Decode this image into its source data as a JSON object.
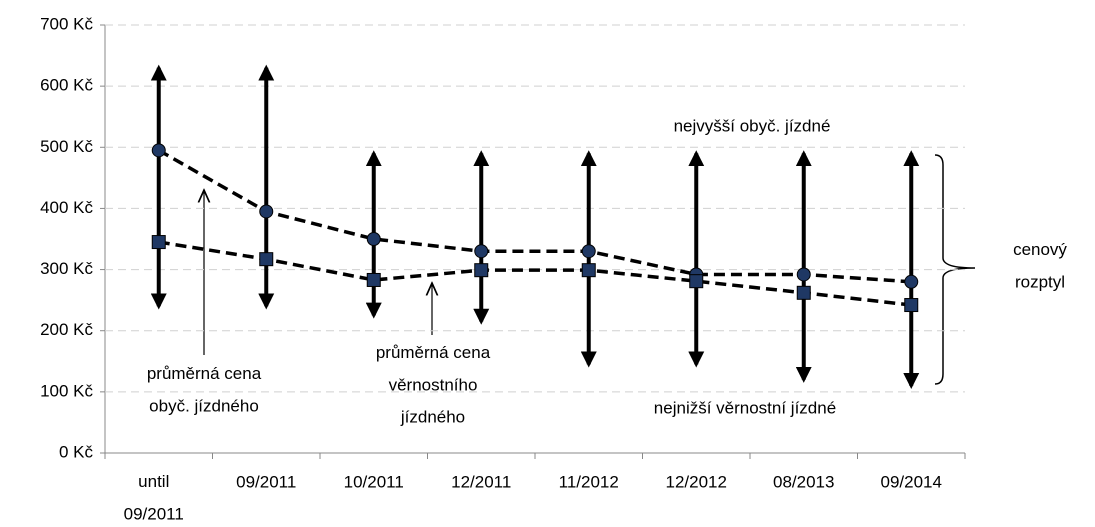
{
  "chart_data": {
    "type": "line",
    "categories": [
      "until\n09/2011",
      "09/2011",
      "10/2011",
      "12/2011",
      "11/2012",
      "12/2012",
      "08/2013",
      "09/2014"
    ],
    "series": [
      {
        "name": "průměrná cena\nobyč. jízdného",
        "color": "#1f3864",
        "marker": "circle",
        "values": [
          495,
          395,
          350,
          330,
          330,
          292,
          292,
          280
        ]
      },
      {
        "name": "průměrná cena\nvěrnostního\njízdného",
        "color": "#1f3864",
        "marker": "square",
        "values": [
          345,
          317,
          283,
          299,
          299,
          281,
          262,
          242
        ]
      }
    ],
    "ranges": {
      "high": {
        "name": "nejvyšší obyč. jízdné",
        "values": [
          630,
          630,
          490,
          490,
          490,
          490,
          490,
          490
        ]
      },
      "low": {
        "name": "nejnižší věrnostní jízdné",
        "values": [
          240,
          240,
          225,
          215,
          145,
          145,
          120,
          110
        ]
      }
    },
    "bracket_label": "cenový\nrozptyl",
    "ylim": [
      0,
      700
    ],
    "yticks": [
      {
        "value": 0,
        "label": "0 Kč"
      },
      {
        "value": 100,
        "label": "100 Kč"
      },
      {
        "value": 200,
        "label": "200 Kč"
      },
      {
        "value": 300,
        "label": "300 Kč"
      },
      {
        "value": 400,
        "label": "400 Kč"
      },
      {
        "value": 500,
        "label": "500 Kč"
      },
      {
        "value": 600,
        "label": "600 Kč"
      },
      {
        "value": 700,
        "label": "700 Kč"
      }
    ],
    "grid": true
  }
}
